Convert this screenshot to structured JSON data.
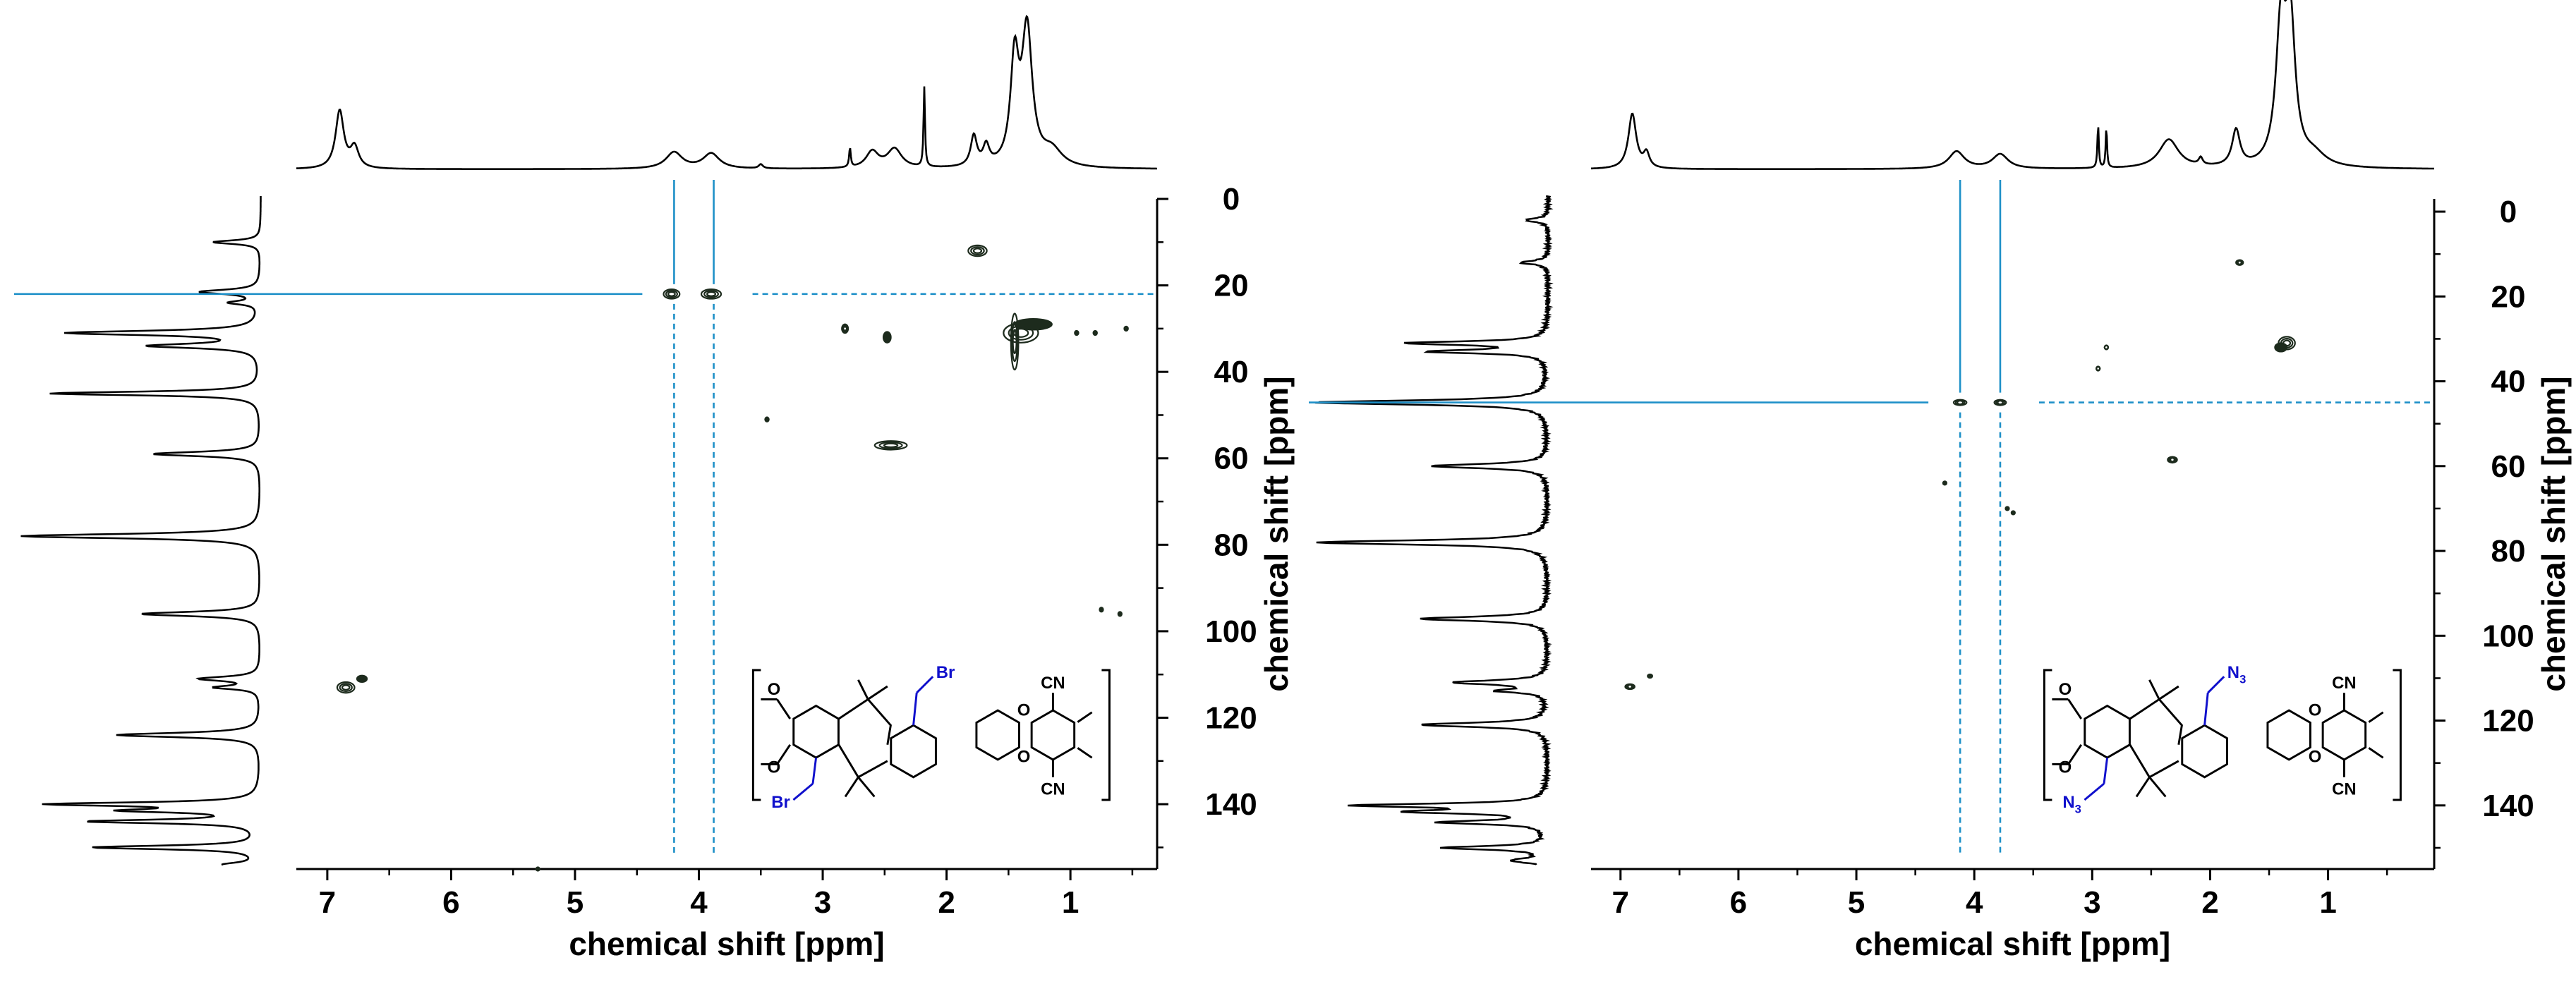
{
  "chart_data": [
    {
      "type": "hsqc-2d-nmr",
      "panel": "left",
      "xlabel": "chemical shift [ppm]",
      "ylabel": "chemical shift [ppm]",
      "xlim": [
        7.25,
        0.3
      ],
      "ylim": [
        0,
        155
      ],
      "xticks": [
        7,
        6,
        5,
        4,
        3,
        2,
        1
      ],
      "xtick_labels": [
        "7",
        "6",
        "5",
        "4",
        "3",
        "2",
        "1"
      ],
      "yticks": [
        0,
        20,
        40,
        60,
        80,
        100,
        120,
        140
      ],
      "ytick_labels": [
        "0",
        "20",
        "40",
        "60",
        "80",
        "100",
        "120",
        "140"
      ],
      "highlight_crosspeaks": [
        {
          "x": 4.2,
          "y": 22
        },
        {
          "x": 3.88,
          "y": 22
        }
      ],
      "crosspeaks": [
        {
          "x": 4.22,
          "y": 22,
          "w": 0.13,
          "h": 2.2,
          "strong": true
        },
        {
          "x": 3.9,
          "y": 22,
          "w": 0.16,
          "h": 2.2,
          "strong": true
        },
        {
          "x": 1.75,
          "y": 12,
          "w": 0.15,
          "h": 2.5,
          "strong": true
        },
        {
          "x": 1.4,
          "y": 31,
          "w": 0.28,
          "h": 4.5,
          "strong": true
        },
        {
          "x": 1.45,
          "y": 33,
          "w": 0.06,
          "h": 13,
          "strong": true
        },
        {
          "x": 1.3,
          "y": 29,
          "w": 0.3,
          "h": 2.5,
          "strong": false
        },
        {
          "x": 2.82,
          "y": 30,
          "w": 0.05,
          "h": 2,
          "strong": true
        },
        {
          "x": 2.45,
          "y": 57,
          "w": 0.26,
          "h": 2,
          "strong": true
        },
        {
          "x": 6.85,
          "y": 113,
          "w": 0.14,
          "h": 2.5,
          "strong": true
        },
        {
          "x": 6.72,
          "y": 111,
          "w": 0.08,
          "h": 1.5,
          "strong": false
        },
        {
          "x": 3.45,
          "y": 51,
          "w": 0.03,
          "h": 1,
          "strong": false
        },
        {
          "x": 2.48,
          "y": 32,
          "w": 0.06,
          "h": 2.5,
          "strong": false
        },
        {
          "x": 0.95,
          "y": 31,
          "w": 0.03,
          "h": 1,
          "strong": false
        },
        {
          "x": 0.8,
          "y": 31,
          "w": 0.03,
          "h": 1,
          "strong": false
        },
        {
          "x": 0.55,
          "y": 30,
          "w": 0.03,
          "h": 1,
          "strong": false
        },
        {
          "x": 0.75,
          "y": 95,
          "w": 0.02,
          "h": 1,
          "strong": false
        },
        {
          "x": 0.6,
          "y": 96,
          "w": 0.02,
          "h": 1,
          "strong": false
        },
        {
          "x": 5.3,
          "y": 155,
          "w": 0.02,
          "h": 0.6,
          "strong": false
        }
      ],
      "f2_projection": [
        {
          "ppm": 6.9,
          "height": 0.42,
          "width": 0.04
        },
        {
          "ppm": 6.78,
          "height": 0.15,
          "width": 0.04
        },
        {
          "ppm": 4.2,
          "height": 0.12,
          "width": 0.08
        },
        {
          "ppm": 3.9,
          "height": 0.11,
          "width": 0.08
        },
        {
          "ppm": 3.5,
          "height": 0.03,
          "width": 0.02
        },
        {
          "ppm": 2.78,
          "height": 0.14,
          "width": 0.008
        },
        {
          "ppm": 2.6,
          "height": 0.12,
          "width": 0.06
        },
        {
          "ppm": 2.42,
          "height": 0.14,
          "width": 0.07
        },
        {
          "ppm": 2.18,
          "height": 0.58,
          "width": 0.007
        },
        {
          "ppm": 1.78,
          "height": 0.22,
          "width": 0.03
        },
        {
          "ppm": 1.68,
          "height": 0.14,
          "width": 0.03
        },
        {
          "ppm": 1.45,
          "height": 0.75,
          "width": 0.04
        },
        {
          "ppm": 1.35,
          "height": 0.98,
          "width": 0.05
        },
        {
          "ppm": 1.15,
          "height": 0.12,
          "width": 0.1
        }
      ],
      "f1_projection": [
        {
          "ppm": 10,
          "height": 0.2,
          "width": 0.5
        },
        {
          "ppm": 21.5,
          "height": 0.25,
          "width": 0.6
        },
        {
          "ppm": 24,
          "height": 0.12,
          "width": 0.5
        },
        {
          "ppm": 31,
          "height": 0.8,
          "width": 0.6
        },
        {
          "ppm": 34,
          "height": 0.45,
          "width": 0.6
        },
        {
          "ppm": 45,
          "height": 0.88,
          "width": 0.5
        },
        {
          "ppm": 59,
          "height": 0.45,
          "width": 0.6
        },
        {
          "ppm": 78,
          "height": 1.0,
          "width": 0.6
        },
        {
          "ppm": 96,
          "height": 0.5,
          "width": 0.6
        },
        {
          "ppm": 111,
          "height": 0.25,
          "width": 0.6
        },
        {
          "ppm": 113,
          "height": 0.18,
          "width": 0.5
        },
        {
          "ppm": 124,
          "height": 0.6,
          "width": 0.6
        },
        {
          "ppm": 140,
          "height": 0.85,
          "width": 0.5
        },
        {
          "ppm": 141.5,
          "height": 0.5,
          "width": 0.5
        },
        {
          "ppm": 144,
          "height": 0.7,
          "width": 0.5
        },
        {
          "ppm": 150,
          "height": 0.7,
          "width": 0.5
        },
        {
          "ppm": 154,
          "height": 0.15,
          "width": 0.6
        }
      ],
      "structure": {
        "substituent_label": "Br",
        "substituent_color": "#1010cc",
        "cn_label": "CN",
        "o_label": "O"
      }
    },
    {
      "type": "hsqc-2d-nmr",
      "panel": "right",
      "xlabel": "chemical shift [ppm]",
      "ylabel": "chemical shift [ppm]",
      "xlim": [
        7.25,
        0.1
      ],
      "ylim": [
        -3,
        155
      ],
      "xticks": [
        7,
        6,
        5,
        4,
        3,
        2,
        1
      ],
      "xtick_labels": [
        "7",
        "6",
        "5",
        "4",
        "3",
        "2",
        "1"
      ],
      "yticks": [
        0,
        20,
        40,
        60,
        80,
        100,
        120,
        140
      ],
      "ytick_labels": [
        "0",
        "20",
        "40",
        "60",
        "80",
        "100",
        "120",
        "140"
      ],
      "highlight_crosspeaks": [
        {
          "x": 4.12,
          "y": 45
        },
        {
          "x": 3.78,
          "y": 45
        }
      ],
      "crosspeaks": [
        {
          "x": 4.12,
          "y": 45,
          "w": 0.11,
          "h": 1.3,
          "strong": true
        },
        {
          "x": 3.78,
          "y": 45,
          "w": 0.1,
          "h": 1.3,
          "strong": true
        },
        {
          "x": 1.75,
          "y": 12,
          "w": 0.06,
          "h": 1.2,
          "strong": true
        },
        {
          "x": 1.35,
          "y": 31,
          "w": 0.14,
          "h": 3,
          "strong": true
        },
        {
          "x": 1.4,
          "y": 32,
          "w": 0.1,
          "h": 2,
          "strong": false
        },
        {
          "x": 2.88,
          "y": 32,
          "w": 0.03,
          "h": 1,
          "strong": true
        },
        {
          "x": 2.95,
          "y": 37,
          "w": 0.03,
          "h": 1,
          "strong": true
        },
        {
          "x": 2.32,
          "y": 58.5,
          "w": 0.08,
          "h": 1.4,
          "strong": true
        },
        {
          "x": 6.92,
          "y": 112,
          "w": 0.08,
          "h": 1.2,
          "strong": true
        },
        {
          "x": 6.75,
          "y": 109.5,
          "w": 0.04,
          "h": 0.8,
          "strong": false
        },
        {
          "x": 4.25,
          "y": 64,
          "w": 0.02,
          "h": 0.7,
          "strong": false
        },
        {
          "x": 3.72,
          "y": 70,
          "w": 0.02,
          "h": 0.7,
          "strong": false
        },
        {
          "x": 3.67,
          "y": 71,
          "w": 0.02,
          "h": 0.7,
          "strong": false
        }
      ],
      "f2_projection": [
        {
          "ppm": 6.9,
          "height": 0.38,
          "width": 0.04
        },
        {
          "ppm": 6.78,
          "height": 0.1,
          "width": 0.03
        },
        {
          "ppm": 4.15,
          "height": 0.12,
          "width": 0.08
        },
        {
          "ppm": 3.78,
          "height": 0.1,
          "width": 0.08
        },
        {
          "ppm": 2.95,
          "height": 0.3,
          "width": 0.007
        },
        {
          "ppm": 2.88,
          "height": 0.28,
          "width": 0.007
        },
        {
          "ppm": 2.35,
          "height": 0.2,
          "width": 0.1
        },
        {
          "ppm": 2.08,
          "height": 0.05,
          "width": 0.02
        },
        {
          "ppm": 1.78,
          "height": 0.25,
          "width": 0.04
        },
        {
          "ppm": 1.4,
          "height": 0.92,
          "width": 0.05
        },
        {
          "ppm": 1.32,
          "height": 0.96,
          "width": 0.05
        },
        {
          "ppm": 1.12,
          "height": 0.08,
          "width": 0.12
        }
      ],
      "f1_projection": [
        {
          "ppm": 2,
          "height": 0.1,
          "width": 0.5
        },
        {
          "ppm": 12,
          "height": 0.12,
          "width": 0.5
        },
        {
          "ppm": 31,
          "height": 0.6,
          "width": 0.5
        },
        {
          "ppm": 33,
          "height": 0.5,
          "width": 0.5
        },
        {
          "ppm": 45,
          "height": 1.0,
          "width": 0.6
        },
        {
          "ppm": 60,
          "height": 0.5,
          "width": 0.6
        },
        {
          "ppm": 78,
          "height": 1.0,
          "width": 0.6
        },
        {
          "ppm": 96,
          "height": 0.55,
          "width": 0.6
        },
        {
          "ppm": 111,
          "height": 0.4,
          "width": 0.6
        },
        {
          "ppm": 113,
          "height": 0.2,
          "width": 0.5
        },
        {
          "ppm": 121,
          "height": 0.55,
          "width": 0.6
        },
        {
          "ppm": 140,
          "height": 0.8,
          "width": 0.5
        },
        {
          "ppm": 141.5,
          "height": 0.55,
          "width": 0.5
        },
        {
          "ppm": 144,
          "height": 0.45,
          "width": 0.5
        },
        {
          "ppm": 150,
          "height": 0.45,
          "width": 0.5
        },
        {
          "ppm": 153,
          "height": 0.15,
          "width": 0.6
        }
      ],
      "structure": {
        "substituent_label": "N",
        "substituent_subscript": "3",
        "substituent_color": "#1010cc",
        "cn_label": "CN",
        "o_label": "O"
      }
    }
  ],
  "colors": {
    "highlight": "#1e90c8",
    "contour": "#1d2b1d",
    "projection": "#000000"
  }
}
